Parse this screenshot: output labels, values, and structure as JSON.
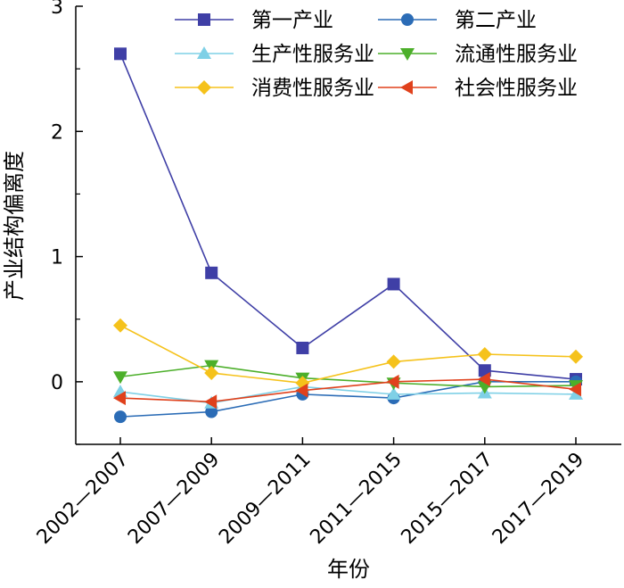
{
  "chart_data": {
    "type": "line",
    "title": "",
    "xlabel": "年份",
    "ylabel": "产业结构偏离度",
    "categories": [
      "2002—2007",
      "2007—2009",
      "2009—2011",
      "2011—2015",
      "2015—2017",
      "2017—2019"
    ],
    "ylim": [
      -0.5,
      3
    ],
    "yticks": [
      0,
      1,
      2,
      3
    ],
    "grid": false,
    "legend_position": "top",
    "series": [
      {
        "name": "第一产业",
        "color": "#3f3fa6",
        "marker": "square",
        "values": [
          2.62,
          0.87,
          0.27,
          0.78,
          0.09,
          0.02
        ]
      },
      {
        "name": "第二产业",
        "color": "#2b6cb6",
        "marker": "circle",
        "values": [
          -0.28,
          -0.24,
          -0.1,
          -0.13,
          0.0,
          0.0
        ]
      },
      {
        "name": "生产性服务业",
        "color": "#7fd0e6",
        "marker": "triangle-up",
        "values": [
          -0.08,
          -0.17,
          -0.04,
          -0.1,
          -0.09,
          -0.1
        ]
      },
      {
        "name": "流通性服务业",
        "color": "#4caf2a",
        "marker": "triangle-down",
        "values": [
          0.04,
          0.13,
          0.03,
          -0.01,
          -0.04,
          -0.03
        ]
      },
      {
        "name": "消费性服务业",
        "color": "#f5c21b",
        "marker": "diamond",
        "values": [
          0.45,
          0.07,
          -0.01,
          0.16,
          0.22,
          0.2
        ]
      },
      {
        "name": "社会性服务业",
        "color": "#e0411c",
        "marker": "triangle-left",
        "values": [
          -0.13,
          -0.16,
          -0.07,
          0.0,
          0.02,
          -0.06
        ]
      }
    ]
  }
}
